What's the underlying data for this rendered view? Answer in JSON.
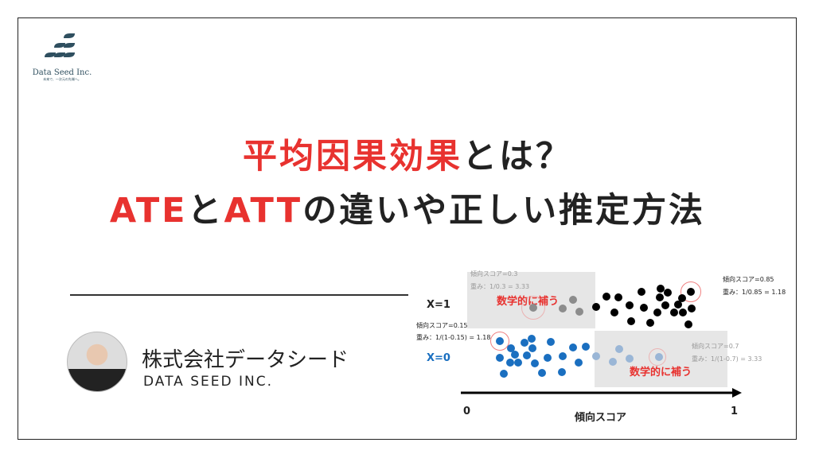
{
  "logo": {
    "name": "Data Seed Inc.",
    "tagline": "未来で、一次元の先端へ。",
    "color": "#2f4f5f"
  },
  "title": {
    "line1_red": "平均因果効果",
    "line1_rest": "とは？",
    "line2_red1": "ATE",
    "line2_mid": "と",
    "line2_red2": "ATT",
    "line2_rest": "の違いや正しい推定方法",
    "accent": "#e8322f"
  },
  "author": {
    "name_jp": "株式会社データシード",
    "name_en": "DATA SEED INC."
  },
  "diagram": {
    "x1_label": "X=1",
    "x0_label": "X=0",
    "axis_label": "傾向スコア",
    "axis_start": "0",
    "axis_end": "1",
    "ann_top_left": {
      "score": "傾向スコア=0.3",
      "weight": "重み：1/0.3 = 3.33"
    },
    "ann_top_right": {
      "score": "傾向スコア=0.85",
      "weight": "重み：1/0.85 = 1.18"
    },
    "ann_mid_left": {
      "score": "傾向スコア=0.15",
      "weight": "重み：1/(1-0.15) = 1.18"
    },
    "ann_bottom_right": {
      "score": "傾向スコア=0.7",
      "weight": "重み：1/(1-0.7) = 3.33"
    },
    "compensate": "数学的に補う",
    "colors": {
      "treated": "#000000",
      "control": "#1a6fc0",
      "imputed_treated": "#8c8c8c",
      "imputed_control": "#9ab6d6"
    }
  }
}
